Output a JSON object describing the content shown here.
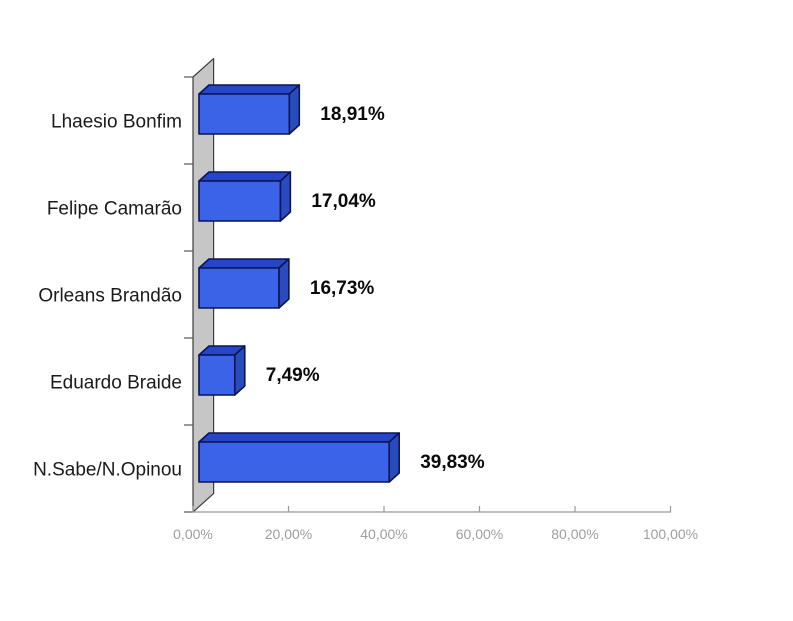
{
  "chart_data": {
    "type": "bar",
    "orientation": "horizontal",
    "style": "3d",
    "title": "",
    "subtitle": "",
    "legend": null,
    "categories": [
      "Lhaesio Bonfim",
      "Felipe Camarão",
      "Orleans Brandão",
      "Eduardo Braide",
      "N.Sabe/N.Opinou"
    ],
    "values": [
      18.91,
      17.04,
      16.73,
      7.49,
      39.83
    ],
    "value_labels": [
      "18,91%",
      "17,04%",
      "16,73%",
      "7,49%",
      "39,83%"
    ],
    "x_axis": {
      "min": 0,
      "max": 100,
      "step": 20,
      "tick_labels": [
        "0,00%",
        "20,00%",
        "40,00%",
        "60,00%",
        "80,00%",
        "100,00%"
      ]
    },
    "grid": false,
    "colors": {
      "background": "#FFFFFF",
      "bar_front": "#3A63E8",
      "bar_top": "#2546C9",
      "bar_side": "#2A4BBE",
      "bar_outline": "#0B1556",
      "wall_fill": "#C6C6C6",
      "wall_outline": "#3D3D3D",
      "axis_line": "#999999",
      "category_tick": "#555555",
      "tick_label": "#9E9E9E",
      "category_label": "#1B1B1B",
      "value_label": "#0A0A0A"
    }
  }
}
